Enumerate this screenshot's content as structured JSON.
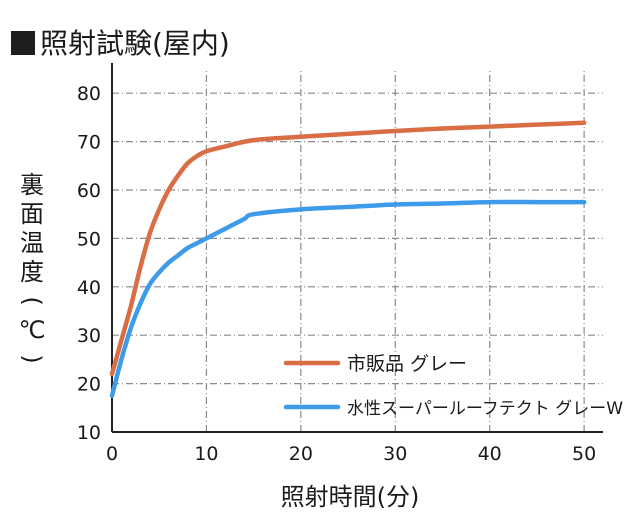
{
  "chart_data": {
    "type": "line",
    "title": "照射試験(屋内)",
    "xlabel": "照射時間(分)",
    "ylabel": "裏面温度(℃)",
    "xlim": [
      0,
      52
    ],
    "ylim": [
      10,
      85
    ],
    "xticks": [
      0,
      10,
      20,
      30,
      40,
      50
    ],
    "yticks": [
      10,
      20,
      30,
      40,
      50,
      60,
      70,
      80
    ],
    "grid": true,
    "legend_position": "bottom-right",
    "series": [
      {
        "name": "市販品 グレー",
        "color": "#d96e45",
        "x": [
          0,
          1,
          2,
          3,
          4,
          5,
          6,
          7,
          8,
          9,
          10,
          12,
          15,
          20,
          25,
          30,
          35,
          40,
          45,
          50
        ],
        "y": [
          22,
          29,
          36,
          44,
          51,
          56,
          60,
          63,
          65.5,
          67,
          68,
          69,
          70.3,
          71,
          71.6,
          72.2,
          72.7,
          73.1,
          73.5,
          73.9
        ]
      },
      {
        "name": "水性スーパールーフテクト グレーW",
        "color": "#3d9be9",
        "x": [
          0,
          1,
          2,
          3,
          4,
          5,
          6,
          7,
          8,
          9,
          10,
          12,
          14,
          15,
          20,
          25,
          30,
          35,
          40,
          45,
          50
        ],
        "y": [
          17.5,
          25,
          31.5,
          36.5,
          40.5,
          43,
          45,
          46.5,
          48,
          49,
          50,
          52,
          54,
          55,
          56,
          56.5,
          57,
          57.2,
          57.5,
          57.5,
          57.5
        ]
      }
    ]
  }
}
